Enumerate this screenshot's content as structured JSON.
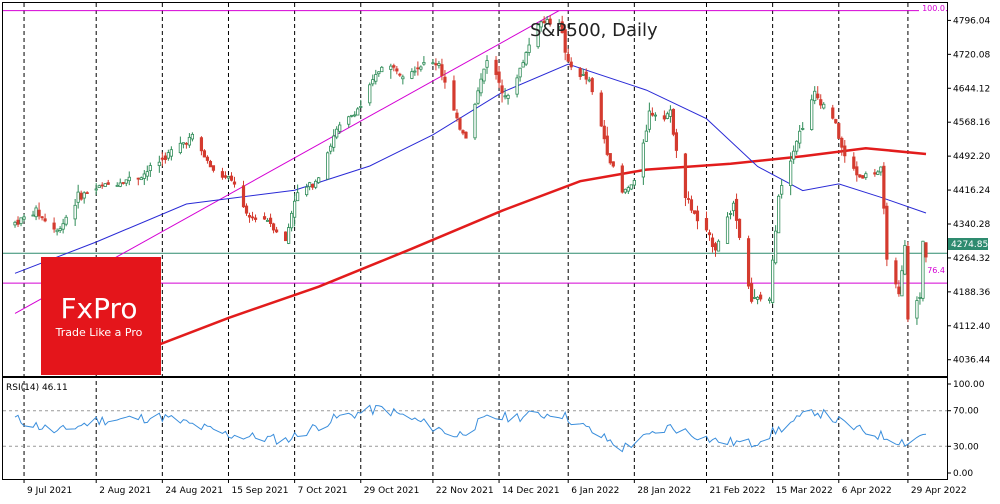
{
  "chart_data": {
    "type": "candlestick",
    "title": "S&P500, Daily",
    "ylim": [
      4000,
      4835
    ],
    "y_ticks": [
      "4796.04",
      "4720.08",
      "4644.12",
      "4568.16",
      "4492.20",
      "4416.24",
      "4340.28",
      "4264.32",
      "4188.36",
      "4112.40",
      "4036.44"
    ],
    "x_ticks": [
      {
        "label": "9 Jul 2021",
        "date": "2021-07-09"
      },
      {
        "label": "2 Aug 2021",
        "date": "2021-08-02"
      },
      {
        "label": "24 Aug 2021",
        "date": "2021-08-24"
      },
      {
        "label": "15 Sep 2021",
        "date": "2021-09-15"
      },
      {
        "label": "7 Oct 2021",
        "date": "2021-10-07"
      },
      {
        "label": "29 Oct 2021",
        "date": "2021-10-29"
      },
      {
        "label": "22 Nov 2021",
        "date": "2021-11-22"
      },
      {
        "label": "14 Dec 2021",
        "date": "2021-12-14"
      },
      {
        "label": "6 Jan 2022",
        "date": "2022-01-06"
      },
      {
        "label": "28 Jan 2022",
        "date": "2022-01-28"
      },
      {
        "label": "21 Feb 2022",
        "date": "2022-02-21"
      },
      {
        "label": "15 Mar 2022",
        "date": "2022-03-15"
      },
      {
        "label": "6 Apr 2022",
        "date": "2022-04-06"
      },
      {
        "label": "29 Apr 2022",
        "date": "2022-04-29"
      }
    ],
    "price_series": [
      {
        "date": "2021-07-06",
        "close": 4343
      },
      {
        "date": "2021-07-13",
        "close": 4369
      },
      {
        "date": "2021-07-20",
        "close": 4323
      },
      {
        "date": "2021-07-27",
        "close": 4401
      },
      {
        "date": "2021-08-03",
        "close": 4423
      },
      {
        "date": "2021-08-10",
        "close": 4436
      },
      {
        "date": "2021-08-17",
        "close": 4448
      },
      {
        "date": "2021-08-24",
        "close": 4486
      },
      {
        "date": "2021-08-31",
        "close": 4522
      },
      {
        "date": "2021-09-03",
        "close": 4536
      },
      {
        "date": "2021-09-10",
        "close": 4458
      },
      {
        "date": "2021-09-17",
        "close": 4432
      },
      {
        "date": "2021-09-21",
        "close": 4355
      },
      {
        "date": "2021-09-28",
        "close": 4352
      },
      {
        "date": "2021-10-04",
        "close": 4300
      },
      {
        "date": "2021-10-07",
        "close": 4399
      },
      {
        "date": "2021-10-14",
        "close": 4438
      },
      {
        "date": "2021-10-21",
        "close": 4549
      },
      {
        "date": "2021-10-29",
        "close": 4605
      },
      {
        "date": "2021-11-05",
        "close": 4697
      },
      {
        "date": "2021-11-12",
        "close": 4682
      },
      {
        "date": "2021-11-19",
        "close": 4697
      },
      {
        "date": "2021-11-24",
        "close": 4701
      },
      {
        "date": "2021-11-30",
        "close": 4567
      },
      {
        "date": "2021-12-03",
        "close": 4538
      },
      {
        "date": "2021-12-10",
        "close": 4712
      },
      {
        "date": "2021-12-17",
        "close": 4620
      },
      {
        "date": "2021-12-27",
        "close": 4791
      },
      {
        "date": "2022-01-03",
        "close": 4796
      },
      {
        "date": "2022-01-06",
        "close": 4696
      },
      {
        "date": "2022-01-13",
        "close": 4659
      },
      {
        "date": "2022-01-20",
        "close": 4482
      },
      {
        "date": "2022-01-24",
        "close": 4410
      },
      {
        "date": "2022-01-28",
        "close": 4432
      },
      {
        "date": "2022-02-02",
        "close": 4589
      },
      {
        "date": "2022-02-09",
        "close": 4587
      },
      {
        "date": "2022-02-14",
        "close": 4401
      },
      {
        "date": "2022-02-18",
        "close": 4348
      },
      {
        "date": "2022-02-24",
        "close": 4288
      },
      {
        "date": "2022-03-02",
        "close": 4386
      },
      {
        "date": "2022-03-08",
        "close": 4170
      },
      {
        "date": "2022-03-14",
        "close": 4173
      },
      {
        "date": "2022-03-17",
        "close": 4411
      },
      {
        "date": "2022-03-22",
        "close": 4511
      },
      {
        "date": "2022-03-29",
        "close": 4631
      },
      {
        "date": "2022-04-04",
        "close": 4582
      },
      {
        "date": "2022-04-08",
        "close": 4488
      },
      {
        "date": "2022-04-13",
        "close": 4446
      },
      {
        "date": "2022-04-20",
        "close": 4459
      },
      {
        "date": "2022-04-22",
        "close": 4272
      },
      {
        "date": "2022-04-26",
        "close": 4175
      },
      {
        "date": "2022-04-28",
        "close": 4287
      },
      {
        "date": "2022-04-29",
        "close": 4132
      },
      {
        "date": "2022-05-03",
        "close": 4175
      },
      {
        "date": "2022-05-04",
        "close": 4300
      },
      {
        "date": "2022-05-05",
        "close": 4275
      }
    ],
    "ma_blue": [
      {
        "date": "2021-07-06",
        "value": 4230
      },
      {
        "date": "2021-08-02",
        "value": 4300
      },
      {
        "date": "2021-09-01",
        "value": 4385
      },
      {
        "date": "2021-10-07",
        "value": 4416
      },
      {
        "date": "2021-11-01",
        "value": 4470
      },
      {
        "date": "2021-11-22",
        "value": 4540
      },
      {
        "date": "2021-12-15",
        "value": 4635
      },
      {
        "date": "2022-01-06",
        "value": 4698
      },
      {
        "date": "2022-02-01",
        "value": 4640
      },
      {
        "date": "2022-02-21",
        "value": 4576
      },
      {
        "date": "2022-03-10",
        "value": 4469
      },
      {
        "date": "2022-03-25",
        "value": 4415
      },
      {
        "date": "2022-04-06",
        "value": 4430
      },
      {
        "date": "2022-04-20",
        "value": 4400
      },
      {
        "date": "2022-05-05",
        "value": 4365
      }
    ],
    "ma_red": [
      {
        "date": "2021-08-15",
        "value": 4050
      },
      {
        "date": "2021-09-15",
        "value": 4130
      },
      {
        "date": "2021-10-15",
        "value": 4200
      },
      {
        "date": "2021-11-15",
        "value": 4285
      },
      {
        "date": "2021-12-15",
        "value": 4370
      },
      {
        "date": "2022-01-10",
        "value": 4436
      },
      {
        "date": "2022-02-01",
        "value": 4462
      },
      {
        "date": "2022-03-01",
        "value": 4475
      },
      {
        "date": "2022-03-25",
        "value": 4492
      },
      {
        "date": "2022-04-15",
        "value": 4510
      },
      {
        "date": "2022-05-05",
        "value": 4497
      }
    ],
    "price_level_label": "4274.85",
    "price_level": 4274.85,
    "fib_top_label": "100.0",
    "fib_top": 4818,
    "fib_label": "76.4",
    "fib_level": 4208,
    "trendline": {
      "start": {
        "date": "2021-07-06",
        "value": 4140
      },
      "end": {
        "date": "2022-01-03",
        "value": 4818
      }
    },
    "rsi": {
      "label": "RSI(14) 46.11",
      "ticks": [
        "100.00",
        "70.00",
        "30.00",
        "0.00"
      ],
      "levels": [
        70,
        30
      ],
      "series": [
        {
          "date": "2021-07-06",
          "value": 61
        },
        {
          "date": "2021-07-20",
          "value": 46
        },
        {
          "date": "2021-08-02",
          "value": 59
        },
        {
          "date": "2021-08-24",
          "value": 63
        },
        {
          "date": "2021-09-15",
          "value": 43
        },
        {
          "date": "2021-10-04",
          "value": 37
        },
        {
          "date": "2021-10-21",
          "value": 62
        },
        {
          "date": "2021-11-05",
          "value": 73
        },
        {
          "date": "2021-11-30",
          "value": 42
        },
        {
          "date": "2021-12-10",
          "value": 61
        },
        {
          "date": "2022-01-03",
          "value": 67
        },
        {
          "date": "2022-01-24",
          "value": 28
        },
        {
          "date": "2022-02-09",
          "value": 52
        },
        {
          "date": "2022-02-24",
          "value": 36
        },
        {
          "date": "2022-03-08",
          "value": 33
        },
        {
          "date": "2022-03-29",
          "value": 70
        },
        {
          "date": "2022-04-13",
          "value": 48
        },
        {
          "date": "2022-04-29",
          "value": 34
        },
        {
          "date": "2022-05-05",
          "value": 46
        }
      ]
    },
    "brand": {
      "name": "FxPro",
      "tagline": "Trade Like a Pro"
    }
  },
  "colors": {
    "ma_blue": "#2a2ad6",
    "ma_red": "#e21c1c",
    "magenta": "#d400d4",
    "price_line": "#2e8b6f",
    "rsi": "#3a8edc",
    "brand_red": "#e4151b",
    "bull": "#2e8b57",
    "bear": "#d43b2f"
  }
}
